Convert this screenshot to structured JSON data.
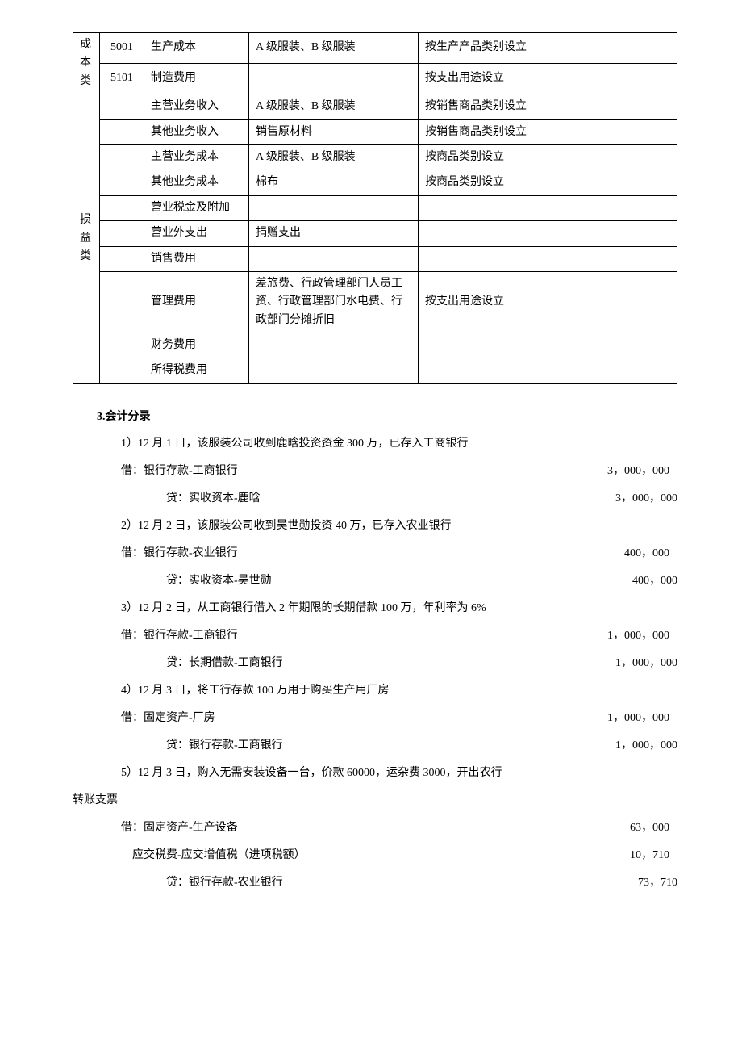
{
  "table": {
    "groups": [
      {
        "label": "成本类",
        "rows": [
          {
            "code": "5001",
            "name": "生产成本",
            "desc": "A 级服装、B 级服装",
            "note": "按生产产品类别设立"
          },
          {
            "code": "5101",
            "name": "制造费用",
            "desc": "",
            "note": "按支出用途设立"
          }
        ]
      },
      {
        "label": "损益类",
        "rows": [
          {
            "code": "",
            "name": "主营业务收入",
            "desc": "A 级服装、B 级服装",
            "note": "按销售商品类别设立"
          },
          {
            "code": "",
            "name": "其他业务收入",
            "desc": "销售原材料",
            "note": "按销售商品类别设立"
          },
          {
            "code": "",
            "name": "主营业务成本",
            "desc": "A 级服装、B 级服装",
            "note": "按商品类别设立"
          },
          {
            "code": "",
            "name": "其他业务成本",
            "desc": "棉布",
            "note": "按商品类别设立"
          },
          {
            "code": "",
            "name": "营业税金及附加",
            "desc": "",
            "note": ""
          },
          {
            "code": "",
            "name": "营业外支出",
            "desc": "捐赠支出",
            "note": ""
          },
          {
            "code": "",
            "name": "销售费用",
            "desc": "",
            "note": ""
          },
          {
            "code": "",
            "name": "管理费用",
            "desc": "差旅费、行政管理部门人员工资、行政管理部门水电费、行政部门分摊折旧",
            "note": "按支出用途设立"
          },
          {
            "code": "",
            "name": "财务费用",
            "desc": "",
            "note": ""
          },
          {
            "code": "",
            "name": "所得税费用",
            "desc": "",
            "note": ""
          }
        ]
      }
    ]
  },
  "section_title": "3.会计分录",
  "entries": [
    {
      "desc": "1）12 月 1 日，该服装公司收到鹿晗投资资金 300 万，已存入工商银行",
      "lines": [
        {
          "type": "debit",
          "label": "借：银行存款-工商银行",
          "amount": "3，000，000"
        },
        {
          "type": "credit",
          "label": "贷：实收资本-鹿晗",
          "amount": "3，000，000"
        }
      ]
    },
    {
      "desc": "2）12 月 2 日，该服装公司收到吴世勋投资 40 万，已存入农业银行",
      "lines": [
        {
          "type": "debit",
          "label": "借：银行存款-农业银行",
          "amount": "400，000"
        },
        {
          "type": "credit",
          "label": "贷：实收资本-吴世勋",
          "amount": "400，000"
        }
      ]
    },
    {
      "desc": "3）12 月 2 日，从工商银行借入 2 年期限的长期借款 100 万，年利率为 6%",
      "lines": [
        {
          "type": "debit",
          "label": "借：银行存款-工商银行",
          "amount": "1，000，000"
        },
        {
          "type": "credit",
          "label": "贷：长期借款-工商银行",
          "amount": "1，000，000"
        }
      ]
    },
    {
      "desc": "4）12 月 3 日，将工行存款 100 万用于购买生产用厂房",
      "lines": [
        {
          "type": "debit",
          "label": "借：固定资产-厂房",
          "amount": "1，000，000"
        },
        {
          "type": "credit",
          "label": "贷：银行存款-工商银行",
          "amount": "1，000，000"
        }
      ]
    },
    {
      "desc": "5）12 月 3 日，购入无需安装设备一台，价款 60000，运杂费 3000，开出农行",
      "desc_cont": "转账支票",
      "lines": [
        {
          "type": "debit",
          "label": "借：固定资产-生产设备",
          "amount": "63，000"
        },
        {
          "type": "debit2",
          "label": "    应交税费-应交增值税（进项税额）",
          "amount": "10，710"
        },
        {
          "type": "credit",
          "label": "贷：银行存款-农业银行",
          "amount": "73，710"
        }
      ]
    }
  ]
}
